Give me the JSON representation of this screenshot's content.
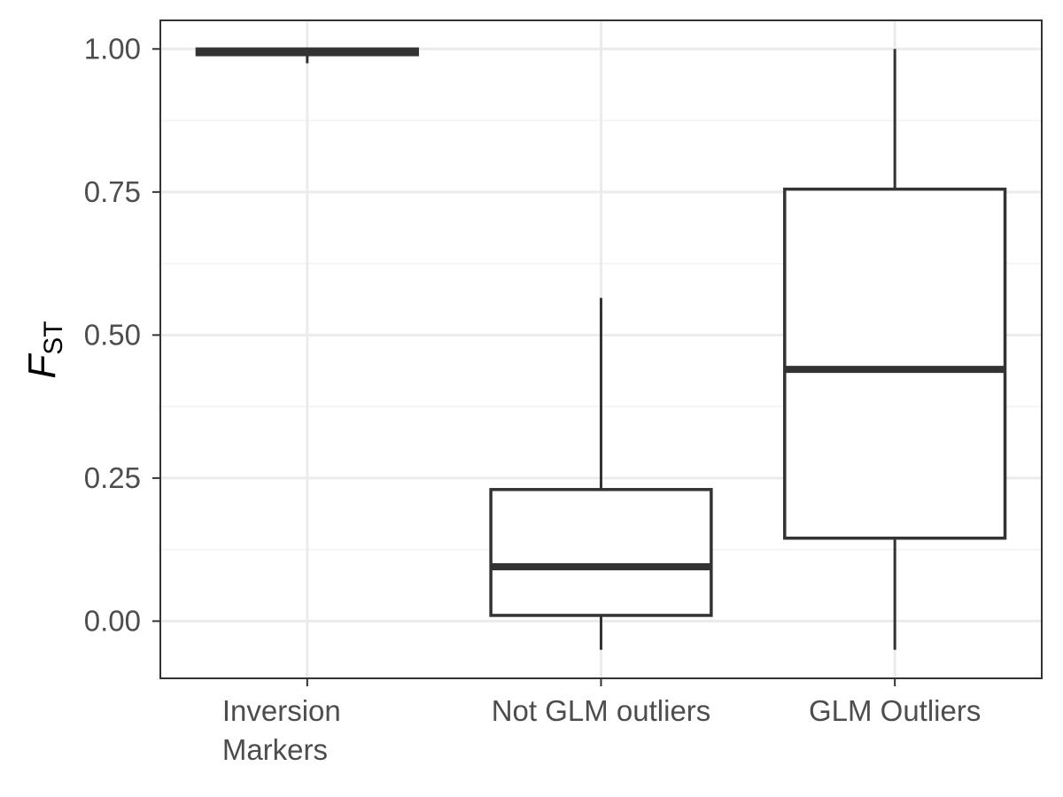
{
  "chart_data": {
    "type": "box",
    "title": "",
    "xlabel": "",
    "ylabel": {
      "main": "F",
      "sub": "ST"
    },
    "ylim": [
      -0.1,
      1.05
    ],
    "yticks": [
      {
        "value": 0.0,
        "label": "0.00"
      },
      {
        "value": 0.25,
        "label": "0.25"
      },
      {
        "value": 0.5,
        "label": "0.50"
      },
      {
        "value": 0.75,
        "label": "0.75"
      },
      {
        "value": 1.0,
        "label": "1.00"
      }
    ],
    "grid": true,
    "legend": "none",
    "colors": {
      "box": "#333333",
      "grid_major": "#ebebeb",
      "grid_minor": "#f2f2f2",
      "panel_border": "#333333"
    },
    "categories": [
      {
        "label": [
          "Inversion",
          "Markers"
        ],
        "whisker_low": 0.975,
        "q1": 0.99,
        "median": 0.995,
        "q3": 1.0,
        "whisker_high": 1.0
      },
      {
        "label": [
          "Not GLM outliers"
        ],
        "whisker_low": -0.05,
        "q1": 0.01,
        "median": 0.095,
        "q3": 0.23,
        "whisker_high": 0.565
      },
      {
        "label": [
          "GLM Outliers"
        ],
        "whisker_low": -0.05,
        "q1": 0.145,
        "median": 0.44,
        "q3": 0.755,
        "whisker_high": 1.0
      }
    ]
  }
}
